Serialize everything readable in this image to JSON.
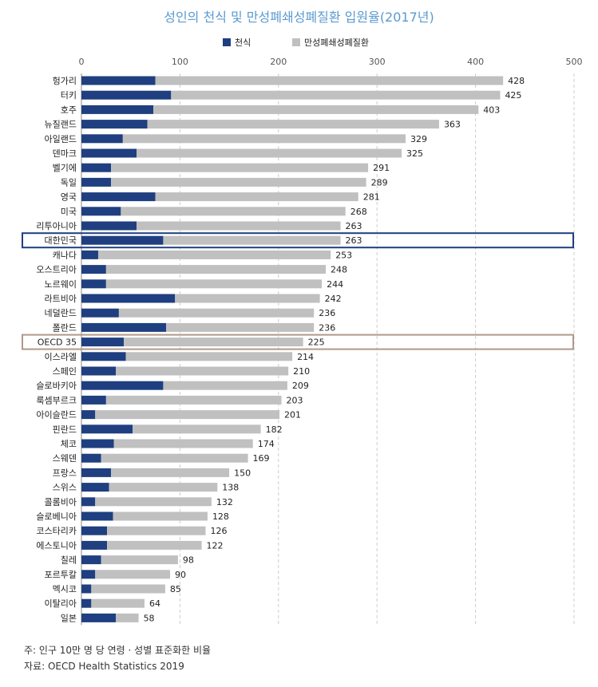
{
  "chart_data": {
    "type": "bar",
    "orientation": "horizontal",
    "title": "성인의 천식 및 만성폐쇄성폐질환 입원율(2017년)",
    "categories": [
      "헝가리",
      "터키",
      "호주",
      "뉴질랜드",
      "아일랜드",
      "덴마크",
      "벨기에",
      "독일",
      "영국",
      "미국",
      "리투아니아",
      "대한민국",
      "캐나다",
      "오스트리아",
      "노르웨이",
      "라트비아",
      "네덜란드",
      "폴란드",
      "OECD 35",
      "이스라엘",
      "스페인",
      "슬로바키아",
      "룩셈부르크",
      "아이슬란드",
      "핀란드",
      "체코",
      "스웨덴",
      "프랑스",
      "스위스",
      "콜롬비아",
      "슬로베니아",
      "코스타리카",
      "에스토니아",
      "칠레",
      "포르투칼",
      "멕시코",
      "이탈리아",
      "일본"
    ],
    "series": [
      {
        "name": "천식",
        "color": "#1f3f80",
        "values": [
          75,
          91,
          73,
          67,
          42,
          56,
          30,
          30,
          75,
          40,
          56,
          83,
          17,
          25,
          25,
          95,
          38,
          86,
          43,
          45,
          35,
          83,
          25,
          14,
          52,
          33,
          20,
          30,
          28,
          14,
          32,
          26,
          26,
          20,
          14,
          10,
          10,
          35
        ]
      },
      {
        "name": "만성폐쇄성폐질환",
        "color": "#c0c0c0",
        "values": [
          353,
          334,
          330,
          296,
          287,
          269,
          261,
          259,
          206,
          228,
          207,
          180,
          236,
          223,
          219,
          147,
          198,
          150,
          182,
          169,
          175,
          126,
          178,
          187,
          130,
          141,
          149,
          120,
          110,
          118,
          96,
          100,
          96,
          78,
          76,
          75,
          54,
          23
        ]
      }
    ],
    "totals": [
      428,
      425,
      403,
      363,
      329,
      325,
      291,
      289,
      281,
      268,
      263,
      263,
      253,
      248,
      244,
      242,
      236,
      236,
      225,
      214,
      210,
      209,
      203,
      201,
      182,
      174,
      169,
      150,
      138,
      132,
      128,
      126,
      122,
      98,
      90,
      85,
      64,
      58
    ],
    "xlim": [
      0,
      500
    ],
    "xticks": [
      0,
      100,
      200,
      300,
      400,
      500
    ],
    "grid": true,
    "legend_position": "top-center",
    "highlights": [
      {
        "category": "대한민국",
        "color": "#1f3f80"
      },
      {
        "category": "OECD 35",
        "color": "#b09a8a"
      }
    ]
  },
  "notes": {
    "footnote": "주: 인구 10만 명 당 연령 · 성별 표준화한 비율",
    "source": "자료: OECD Health Statistics 2019"
  }
}
